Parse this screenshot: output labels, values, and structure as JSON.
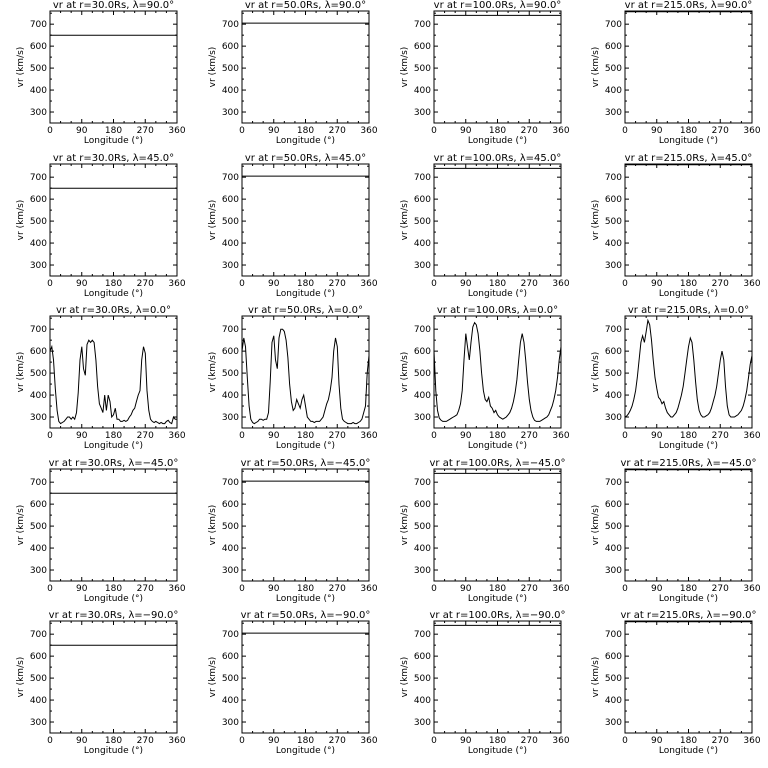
{
  "chart_data": {
    "type": "line",
    "layout": "5 rows x 4 columns of line plots",
    "xlabel": "Longitude (°)",
    "ylabel": "vr (km/s)",
    "xlim": [
      0,
      360
    ],
    "ylim": [
      250,
      760
    ],
    "xticks": [
      0,
      90,
      180,
      270,
      360
    ],
    "xtick_labels": [
      "0",
      "90",
      "180",
      "270",
      "360"
    ],
    "yticks": [
      300,
      400,
      500,
      600,
      700
    ],
    "ytick_labels": [
      "300",
      "400",
      "500",
      "600",
      "700"
    ],
    "grid": false,
    "rows": [
      {
        "latitude": "90.0"
      },
      {
        "latitude": "45.0"
      },
      {
        "latitude": "0.0"
      },
      {
        "latitude": "−45.0"
      },
      {
        "latitude": "−90.0"
      }
    ],
    "columns": [
      {
        "radius": "30.0Rs"
      },
      {
        "radius": "50.0Rs"
      },
      {
        "radius": "100.0Rs"
      },
      {
        "radius": "215.0Rs"
      }
    ],
    "panels": [
      {
        "title": "vr at r=30.0Rs, λ=90.0°",
        "series": [
          {
            "x": [
              0,
              360
            ],
            "y": [
              650,
              650
            ]
          }
        ]
      },
      {
        "title": "vr at r=50.0Rs, λ=90.0°",
        "series": [
          {
            "x": [
              0,
              360
            ],
            "y": [
              705,
              705
            ]
          }
        ]
      },
      {
        "title": "vr at r=100.0Rs, λ=90.0°",
        "series": [
          {
            "x": [
              0,
              360
            ],
            "y": [
              740,
              740
            ]
          }
        ]
      },
      {
        "title": "vr at r=215.0Rs, λ=90.0°",
        "series": [
          {
            "x": [
              0,
              360
            ],
            "y": [
              757,
              757
            ]
          }
        ]
      },
      {
        "title": "vr at r=30.0Rs, λ=45.0°",
        "series": [
          {
            "x": [
              0,
              360
            ],
            "y": [
              650,
              650
            ]
          }
        ]
      },
      {
        "title": "vr at r=50.0Rs, λ=45.0°",
        "series": [
          {
            "x": [
              0,
              360
            ],
            "y": [
              705,
              705
            ]
          }
        ]
      },
      {
        "title": "vr at r=100.0Rs, λ=45.0°",
        "series": [
          {
            "x": [
              0,
              360
            ],
            "y": [
              740,
              740
            ]
          }
        ]
      },
      {
        "title": "vr at r=215.0Rs, λ=45.0°",
        "series": [
          {
            "x": [
              0,
              360
            ],
            "y": [
              757,
              757
            ]
          }
        ]
      },
      {
        "title": "vr at r=30.0Rs, λ=0.0°",
        "series": [
          {
            "x": [
              0,
              5,
              10,
              15,
              20,
              25,
              30,
              35,
              40,
              45,
              50,
              55,
              60,
              65,
              70,
              75,
              80,
              85,
              90,
              95,
              100,
              105,
              110,
              115,
              120,
              125,
              130,
              135,
              140,
              145,
              150,
              155,
              160,
              165,
              170,
              175,
              180,
              185,
              190,
              195,
              200,
              205,
              210,
              215,
              220,
              225,
              230,
              235,
              240,
              245,
              250,
              255,
              260,
              265,
              270,
              275,
              280,
              285,
              290,
              295,
              300,
              305,
              310,
              315,
              320,
              325,
              330,
              335,
              340,
              345,
              350,
              355,
              360
            ],
            "y": [
              600,
              620,
              560,
              430,
              330,
              280,
              270,
              275,
              280,
              290,
              300,
              300,
              290,
              300,
              290,
              320,
              410,
              560,
              620,
              520,
              490,
              630,
              650,
              640,
              650,
              640,
              560,
              440,
              360,
              340,
              320,
              400,
              330,
              400,
              370,
              300,
              310,
              340,
              290,
              290,
              280,
              280,
              285,
              280,
              285,
              300,
              310,
              330,
              340,
              370,
              400,
              420,
              560,
              620,
              590,
              420,
              330,
              290,
              280,
              275,
              280,
              275,
              270,
              275,
              270,
              270,
              280,
              285,
              275,
              270,
              300,
              290,
              290
            ]
          }
        ]
      },
      {
        "title": "vr at r=50.0Rs, λ=0.0°",
        "series": [
          {
            "x": [
              0,
              5,
              10,
              15,
              20,
              25,
              30,
              35,
              40,
              45,
              50,
              55,
              60,
              65,
              70,
              75,
              80,
              85,
              90,
              95,
              100,
              105,
              110,
              115,
              120,
              125,
              130,
              135,
              140,
              145,
              150,
              155,
              160,
              165,
              170,
              175,
              180,
              185,
              190,
              195,
              200,
              205,
              210,
              215,
              220,
              225,
              230,
              235,
              240,
              245,
              250,
              255,
              260,
              265,
              270,
              275,
              280,
              285,
              290,
              295,
              300,
              305,
              310,
              315,
              320,
              325,
              330,
              335,
              340,
              345,
              350,
              355,
              360
            ],
            "y": [
              600,
              660,
              620,
              480,
              350,
              290,
              275,
              270,
              275,
              280,
              290,
              290,
              285,
              290,
              290,
              320,
              460,
              640,
              670,
              560,
              520,
              660,
              700,
              700,
              690,
              650,
              570,
              450,
              370,
              330,
              340,
              380,
              360,
              340,
              380,
              400,
              350,
              300,
              290,
              280,
              280,
              275,
              280,
              280,
              280,
              290,
              300,
              330,
              360,
              380,
              420,
              480,
              600,
              660,
              620,
              450,
              340,
              290,
              280,
              275,
              270,
              270,
              270,
              275,
              270,
              270,
              275,
              280,
              290,
              320,
              350,
              500,
              580
            ]
          }
        ]
      },
      {
        "title": "vr at r=100.0Rs, λ=0.0°",
        "series": [
          {
            "x": [
              0,
              5,
              10,
              15,
              20,
              25,
              30,
              35,
              40,
              45,
              50,
              55,
              60,
              65,
              70,
              75,
              80,
              85,
              90,
              95,
              100,
              105,
              110,
              115,
              120,
              125,
              130,
              135,
              140,
              145,
              150,
              155,
              160,
              165,
              170,
              175,
              180,
              185,
              190,
              195,
              200,
              205,
              210,
              215,
              220,
              225,
              230,
              235,
              240,
              245,
              250,
              255,
              260,
              265,
              270,
              275,
              280,
              285,
              290,
              295,
              300,
              305,
              310,
              315,
              320,
              325,
              330,
              335,
              340,
              345,
              350,
              355,
              360
            ],
            "y": [
              600,
              420,
              330,
              295,
              285,
              280,
              280,
              280,
              285,
              290,
              295,
              300,
              305,
              310,
              330,
              360,
              420,
              560,
              680,
              620,
              560,
              640,
              710,
              730,
              720,
              680,
              600,
              500,
              420,
              380,
              370,
              390,
              350,
              340,
              320,
              330,
              310,
              300,
              295,
              290,
              295,
              300,
              310,
              320,
              340,
              370,
              410,
              470,
              560,
              640,
              680,
              640,
              560,
              460,
              380,
              330,
              300,
              285,
              280,
              280,
              280,
              285,
              290,
              295,
              300,
              310,
              330,
              350,
              380,
              420,
              480,
              560,
              620
            ]
          }
        ]
      },
      {
        "title": "vr at r=215.0Rs, λ=0.0°",
        "series": [
          {
            "x": [
              0,
              5,
              10,
              15,
              20,
              25,
              30,
              35,
              40,
              45,
              50,
              55,
              60,
              65,
              70,
              75,
              80,
              85,
              90,
              95,
              100,
              105,
              110,
              115,
              120,
              125,
              130,
              135,
              140,
              145,
              150,
              155,
              160,
              165,
              170,
              175,
              180,
              185,
              190,
              195,
              200,
              205,
              210,
              215,
              220,
              225,
              230,
              235,
              240,
              245,
              250,
              255,
              260,
              265,
              270,
              275,
              280,
              285,
              290,
              295,
              300,
              305,
              310,
              315,
              320,
              325,
              330,
              335,
              340,
              345,
              350,
              355,
              360
            ],
            "y": [
              300,
              305,
              315,
              330,
              350,
              380,
              420,
              480,
              560,
              640,
              670,
              640,
              690,
              740,
              720,
              650,
              560,
              480,
              430,
              390,
              380,
              360,
              370,
              340,
              320,
              310,
              300,
              300,
              310,
              320,
              340,
              370,
              400,
              440,
              500,
              560,
              620,
              660,
              640,
              560,
              460,
              380,
              330,
              310,
              300,
              300,
              305,
              310,
              320,
              340,
              370,
              400,
              440,
              500,
              560,
              600,
              560,
              440,
              350,
              310,
              300,
              300,
              300,
              305,
              310,
              320,
              330,
              350,
              380,
              420,
              480,
              540,
              580
            ]
          }
        ]
      },
      {
        "title": "vr at r=30.0Rs, λ=−45.0°",
        "series": [
          {
            "x": [
              0,
              360
            ],
            "y": [
              650,
              650
            ]
          }
        ]
      },
      {
        "title": "vr at r=50.0Rs, λ=−45.0°",
        "series": [
          {
            "x": [
              0,
              360
            ],
            "y": [
              705,
              705
            ]
          }
        ]
      },
      {
        "title": "vr at r=100.0Rs, λ=−45.0°",
        "series": [
          {
            "x": [
              0,
              360
            ],
            "y": [
              740,
              740
            ]
          }
        ]
      },
      {
        "title": "vr at r=215.0Rs, λ=−45.0°",
        "series": [
          {
            "x": [
              0,
              360
            ],
            "y": [
              757,
              757
            ]
          }
        ]
      },
      {
        "title": "vr at r=30.0Rs, λ=−90.0°",
        "series": [
          {
            "x": [
              0,
              360
            ],
            "y": [
              650,
              650
            ]
          }
        ]
      },
      {
        "title": "vr at r=50.0Rs, λ=−90.0°",
        "series": [
          {
            "x": [
              0,
              360
            ],
            "y": [
              705,
              705
            ]
          }
        ]
      },
      {
        "title": "vr at r=100.0Rs, λ=−90.0°",
        "series": [
          {
            "x": [
              0,
              360
            ],
            "y": [
              740,
              740
            ]
          }
        ]
      },
      {
        "title": "vr at r=215.0Rs, λ=−90.0°",
        "series": [
          {
            "x": [
              0,
              360
            ],
            "y": [
              757,
              757
            ]
          }
        ]
      }
    ]
  }
}
